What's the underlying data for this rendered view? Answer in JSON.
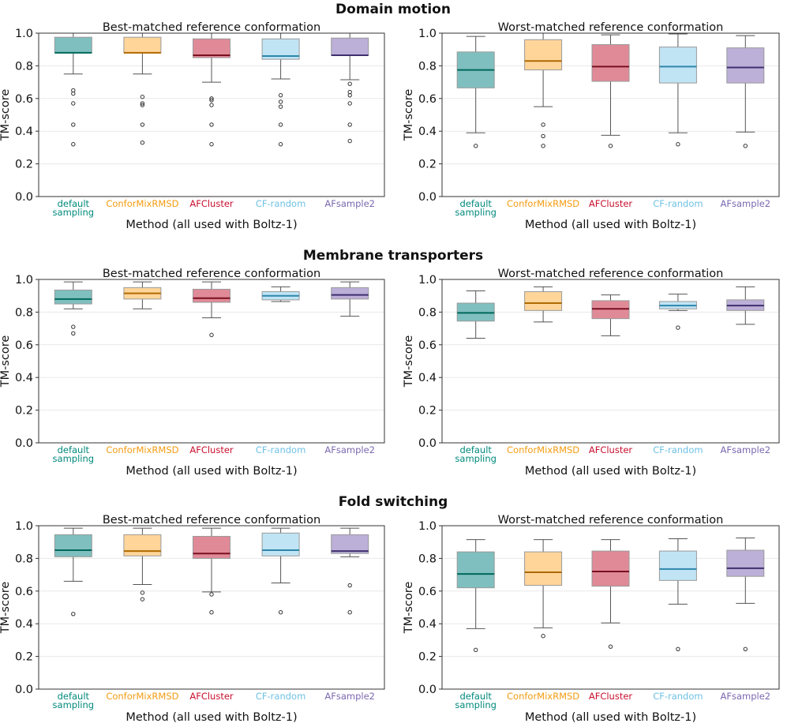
{
  "figure": {
    "ylabel": "TM-score",
    "xlabel": "Method (all used with Boltz-1)",
    "methods": [
      {
        "label_lines": [
          "default",
          "sampling"
        ],
        "fill": "#7fbfbf",
        "median": "#00695c",
        "tick": "#00897b"
      },
      {
        "label_lines": [
          "ConforMixRMSD"
        ],
        "fill": "#ffd59a",
        "median": "#b06a00",
        "tick": "#f39c12"
      },
      {
        "label_lines": [
          "AFCluster"
        ],
        "fill": "#e08a98",
        "median": "#7a1020",
        "tick": "#c8102e"
      },
      {
        "label_lines": [
          "CF-random"
        ],
        "fill": "#c0e4f4",
        "median": "#2e86ab",
        "tick": "#6ec1e4"
      },
      {
        "label_lines": [
          "AFsample2"
        ],
        "fill": "#bcb0d8",
        "median": "#3e2f6e",
        "tick": "#7b68b0"
      }
    ],
    "yticks": [
      "0.0",
      "0.2",
      "0.4",
      "0.6",
      "0.8",
      "1.0"
    ]
  },
  "chart_data": [
    {
      "row_title": "Domain motion",
      "panels": [
        {
          "type": "box",
          "title": "Best-matched reference conformation",
          "ylim": [
            0,
            1
          ],
          "series": [
            {
              "q1": 0.88,
              "median": 0.88,
              "q3": 0.975,
              "whisker_low": 0.75,
              "whisker_high": 1.0,
              "outliers": [
                0.65,
                0.63,
                0.57,
                0.44,
                0.32
              ]
            },
            {
              "q1": 0.88,
              "median": 0.88,
              "q3": 0.975,
              "whisker_low": 0.75,
              "whisker_high": 1.0,
              "outliers": [
                0.61,
                0.57,
                0.56,
                0.44,
                0.33
              ]
            },
            {
              "q1": 0.85,
              "median": 0.865,
              "q3": 0.965,
              "whisker_low": 0.7,
              "whisker_high": 1.0,
              "outliers": [
                0.6,
                0.59,
                0.56,
                0.44,
                0.32
              ]
            },
            {
              "q1": 0.84,
              "median": 0.86,
              "q3": 0.965,
              "whisker_low": 0.72,
              "whisker_high": 1.0,
              "outliers": [
                0.62,
                0.58,
                0.55,
                0.44,
                0.32
              ]
            },
            {
              "q1": 0.865,
              "median": 0.865,
              "q3": 0.97,
              "whisker_low": 0.715,
              "whisker_high": 1.0,
              "outliers": [
                0.69,
                0.64,
                0.62,
                0.57,
                0.44,
                0.34
              ]
            }
          ]
        },
        {
          "type": "box",
          "title": "Worst-matched reference conformation",
          "ylim": [
            0,
            1
          ],
          "series": [
            {
              "q1": 0.665,
              "median": 0.775,
              "q3": 0.885,
              "whisker_low": 0.39,
              "whisker_high": 0.98,
              "outliers": [
                0.31
              ]
            },
            {
              "q1": 0.775,
              "median": 0.83,
              "q3": 0.96,
              "whisker_low": 0.55,
              "whisker_high": 1.0,
              "outliers": [
                0.44,
                0.37,
                0.31
              ]
            },
            {
              "q1": 0.705,
              "median": 0.795,
              "q3": 0.93,
              "whisker_low": 0.375,
              "whisker_high": 0.99,
              "outliers": [
                0.31
              ]
            },
            {
              "q1": 0.695,
              "median": 0.795,
              "q3": 0.915,
              "whisker_low": 0.39,
              "whisker_high": 0.995,
              "outliers": [
                0.32
              ]
            },
            {
              "q1": 0.695,
              "median": 0.79,
              "q3": 0.91,
              "whisker_low": 0.395,
              "whisker_high": 0.985,
              "outliers": [
                0.31
              ]
            }
          ]
        }
      ]
    },
    {
      "row_title": "Membrane transporters",
      "panels": [
        {
          "type": "box",
          "title": "Best-matched reference conformation",
          "ylim": [
            0,
            1
          ],
          "series": [
            {
              "q1": 0.85,
              "median": 0.88,
              "q3": 0.935,
              "whisker_low": 0.82,
              "whisker_high": 0.985,
              "outliers": [
                0.71,
                0.67
              ]
            },
            {
              "q1": 0.88,
              "median": 0.915,
              "q3": 0.95,
              "whisker_low": 0.82,
              "whisker_high": 0.985,
              "outliers": []
            },
            {
              "q1": 0.86,
              "median": 0.885,
              "q3": 0.94,
              "whisker_low": 0.765,
              "whisker_high": 0.985,
              "outliers": [
                0.66
              ]
            },
            {
              "q1": 0.875,
              "median": 0.9,
              "q3": 0.925,
              "whisker_low": 0.865,
              "whisker_high": 0.955,
              "outliers": []
            },
            {
              "q1": 0.88,
              "median": 0.905,
              "q3": 0.95,
              "whisker_low": 0.775,
              "whisker_high": 0.985,
              "outliers": []
            }
          ]
        },
        {
          "type": "box",
          "title": "Worst-matched reference conformation",
          "ylim": [
            0,
            1
          ],
          "series": [
            {
              "q1": 0.745,
              "median": 0.795,
              "q3": 0.855,
              "whisker_low": 0.64,
              "whisker_high": 0.93,
              "outliers": []
            },
            {
              "q1": 0.81,
              "median": 0.855,
              "q3": 0.925,
              "whisker_low": 0.74,
              "whisker_high": 0.955,
              "outliers": []
            },
            {
              "q1": 0.76,
              "median": 0.82,
              "q3": 0.87,
              "whisker_low": 0.655,
              "whisker_high": 0.905,
              "outliers": []
            },
            {
              "q1": 0.82,
              "median": 0.84,
              "q3": 0.865,
              "whisker_low": 0.81,
              "whisker_high": 0.91,
              "outliers": [
                0.705
              ]
            },
            {
              "q1": 0.81,
              "median": 0.84,
              "q3": 0.875,
              "whisker_low": 0.725,
              "whisker_high": 0.955,
              "outliers": []
            }
          ]
        }
      ]
    },
    {
      "row_title": "Fold switching",
      "panels": [
        {
          "type": "box",
          "title": "Best-matched reference conformation",
          "ylim": [
            0,
            1
          ],
          "series": [
            {
              "q1": 0.81,
              "median": 0.85,
              "q3": 0.945,
              "whisker_low": 0.66,
              "whisker_high": 0.985,
              "outliers": [
                0.46
              ]
            },
            {
              "q1": 0.815,
              "median": 0.845,
              "q3": 0.945,
              "whisker_low": 0.64,
              "whisker_high": 0.985,
              "outliers": [
                0.59,
                0.55
              ]
            },
            {
              "q1": 0.8,
              "median": 0.83,
              "q3": 0.935,
              "whisker_low": 0.595,
              "whisker_high": 0.985,
              "outliers": [
                0.58,
                0.47
              ]
            },
            {
              "q1": 0.815,
              "median": 0.85,
              "q3": 0.955,
              "whisker_low": 0.65,
              "whisker_high": 0.985,
              "outliers": [
                0.47
              ]
            },
            {
              "q1": 0.83,
              "median": 0.845,
              "q3": 0.945,
              "whisker_low": 0.81,
              "whisker_high": 0.985,
              "outliers": [
                0.635,
                0.47
              ]
            }
          ]
        },
        {
          "type": "box",
          "title": "Worst-matched reference conformation",
          "ylim": [
            0,
            1
          ],
          "series": [
            {
              "q1": 0.62,
              "median": 0.705,
              "q3": 0.84,
              "whisker_low": 0.37,
              "whisker_high": 0.915,
              "outliers": [
                0.24
              ]
            },
            {
              "q1": 0.635,
              "median": 0.715,
              "q3": 0.84,
              "whisker_low": 0.375,
              "whisker_high": 0.915,
              "outliers": [
                0.325
              ]
            },
            {
              "q1": 0.63,
              "median": 0.72,
              "q3": 0.845,
              "whisker_low": 0.405,
              "whisker_high": 0.915,
              "outliers": [
                0.26
              ]
            },
            {
              "q1": 0.665,
              "median": 0.735,
              "q3": 0.845,
              "whisker_low": 0.52,
              "whisker_high": 0.92,
              "outliers": [
                0.245
              ]
            },
            {
              "q1": 0.69,
              "median": 0.74,
              "q3": 0.85,
              "whisker_low": 0.525,
              "whisker_high": 0.925,
              "outliers": [
                0.245
              ]
            }
          ]
        }
      ]
    }
  ]
}
